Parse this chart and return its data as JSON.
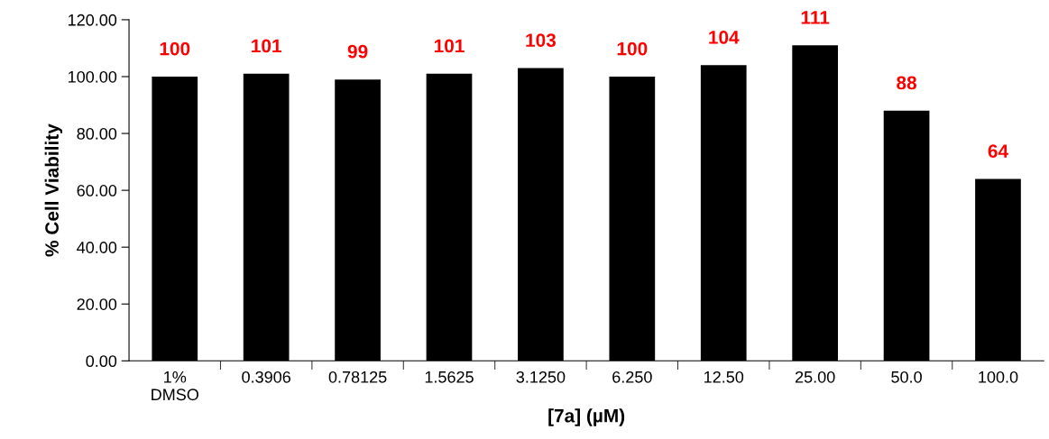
{
  "chart_data": {
    "type": "bar",
    "xlabel": "[7a] (µM)",
    "ylabel": "% Cell Viability",
    "categories": [
      "1%\nDMSO",
      "0.3906",
      "0.78125",
      "1.5625",
      "3.1250",
      "6.250",
      "12.50",
      "25.00",
      "50.0",
      "100.0"
    ],
    "values": [
      100,
      101,
      99,
      101,
      103,
      100,
      104,
      111,
      88,
      64
    ],
    "color": "#000000",
    "data_labels": true,
    "ylim": [
      0,
      120
    ],
    "yticks": [
      {
        "value": 0,
        "label": "0.00"
      },
      {
        "value": 20,
        "label": "20.00"
      },
      {
        "value": 40,
        "label": "40.00"
      },
      {
        "value": 60,
        "label": "60.00"
      },
      {
        "value": 80,
        "label": "80.00"
      },
      {
        "value": 100,
        "label": "100.00"
      },
      {
        "value": 120,
        "label": "120.00"
      }
    ],
    "grid": false,
    "legend": false
  }
}
